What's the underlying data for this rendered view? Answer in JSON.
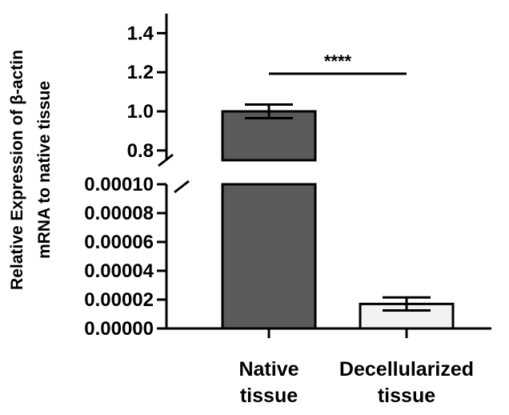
{
  "chart_data": {
    "type": "bar",
    "ylabel_lines": [
      "Relative Expression of β-actin",
      "mRNA to native tissue"
    ],
    "categories": [
      {
        "lines": [
          "Native",
          "tissue"
        ]
      },
      {
        "lines": [
          "Decellularized",
          "tissue"
        ]
      }
    ],
    "series": [
      {
        "values": [
          1.0,
          1.7e-05
        ],
        "errors": [
          0.035,
          4.5e-06
        ],
        "colors": [
          "#5a5a5a",
          "#f2f2f2"
        ]
      }
    ],
    "y_axis_segments": {
      "upper": {
        "range": [
          0.75,
          1.5
        ],
        "ticks": [
          0.8,
          1.0,
          1.2,
          1.4
        ],
        "tick_labels": [
          "0.8",
          "1.0",
          "1.2",
          "1.4"
        ]
      },
      "lower": {
        "range": [
          0,
          0.0001
        ],
        "ticks": [
          0,
          2e-05,
          4e-05,
          6e-05,
          8e-05,
          0.0001
        ],
        "tick_labels": [
          "0.00000",
          "0.00002",
          "0.00004",
          "0.00006",
          "0.00008",
          "0.00010"
        ]
      }
    },
    "axis_break": true,
    "significance": {
      "between": [
        0,
        1
      ],
      "label": "****"
    },
    "grid": false
  }
}
